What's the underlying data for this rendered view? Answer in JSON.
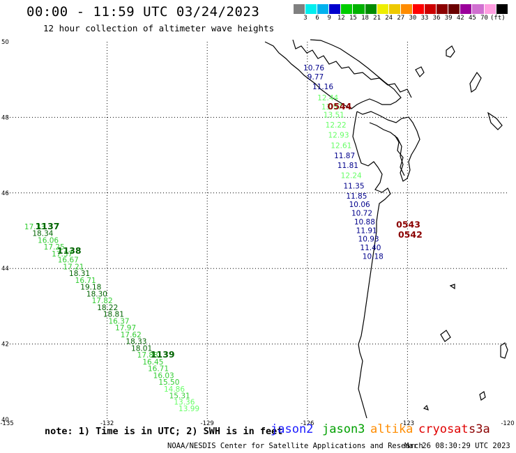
{
  "header": {
    "title": "00:00 - 11:59 UTC 03/24/2023",
    "subtitle": "12 hour collection of altimeter wave heights"
  },
  "colorbar": {
    "colors": [
      "#808080",
      "#00eeee",
      "#00b2ee",
      "#0000cd",
      "#00cd00",
      "#00b200",
      "#008b00",
      "#eeee00",
      "#eec900",
      "#ff8c00",
      "#ff0000",
      "#cd0000",
      "#8b0000",
      "#6b0000",
      "#9b009b",
      "#d070d0",
      "#ff9ee0",
      "#000000"
    ],
    "labels": [
      "3",
      "6",
      "9",
      "12",
      "15",
      "18",
      "21",
      "24",
      "27",
      "30",
      "33",
      "36",
      "39",
      "42",
      "45",
      "70"
    ],
    "unit": "(ft)"
  },
  "axes": {
    "lat_labels": [
      "50",
      "48",
      "46",
      "44",
      "42",
      "40"
    ],
    "lon_labels": [
      "-135",
      "-132",
      "-129",
      "-126",
      "-123",
      "-120"
    ]
  },
  "tracks": [
    {
      "times": [
        {
          "text": "1137",
          "lon": -134.15,
          "lat": 45.04,
          "color": "#006400"
        },
        {
          "text": "1138",
          "lon": -133.5,
          "lat": 44.39,
          "color": "#006400"
        },
        {
          "text": "1139",
          "lon": -130.7,
          "lat": 41.64,
          "color": "#006400"
        }
      ],
      "points": [
        {
          "text": "17.33",
          "lon": -134.48,
          "lat": 45.04,
          "color": "#32cd32"
        },
        {
          "text": "18.34",
          "lon": -134.24,
          "lat": 44.86,
          "color": "#006400"
        },
        {
          "text": "16.06",
          "lon": -134.08,
          "lat": 44.68,
          "color": "#32cd32"
        },
        {
          "text": "17.25",
          "lon": -133.9,
          "lat": 44.5,
          "color": "#32cd32"
        },
        {
          "text": "17.37",
          "lon": -133.66,
          "lat": 44.32,
          "color": "#32cd32"
        },
        {
          "text": "16.67",
          "lon": -133.48,
          "lat": 44.16,
          "color": "#32cd32"
        },
        {
          "text": "17.21",
          "lon": -133.32,
          "lat": 43.98,
          "color": "#32cd32"
        },
        {
          "text": "18.31",
          "lon": -133.14,
          "lat": 43.8,
          "color": "#006400"
        },
        {
          "text": "16.71",
          "lon": -132.96,
          "lat": 43.62,
          "color": "#32cd32"
        },
        {
          "text": "19.18",
          "lon": -132.8,
          "lat": 43.44,
          "color": "#006400"
        },
        {
          "text": "18.30",
          "lon": -132.62,
          "lat": 43.26,
          "color": "#006400"
        },
        {
          "text": "17.82",
          "lon": -132.46,
          "lat": 43.08,
          "color": "#32cd32"
        },
        {
          "text": "18.22",
          "lon": -132.3,
          "lat": 42.9,
          "color": "#006400"
        },
        {
          "text": "18.81",
          "lon": -132.12,
          "lat": 42.72,
          "color": "#006400"
        },
        {
          "text": "16.37",
          "lon": -131.96,
          "lat": 42.54,
          "color": "#32cd32"
        },
        {
          "text": "17.97",
          "lon": -131.76,
          "lat": 42.36,
          "color": "#32cd32"
        },
        {
          "text": "17.62",
          "lon": -131.6,
          "lat": 42.18,
          "color": "#32cd32"
        },
        {
          "text": "18.33",
          "lon": -131.44,
          "lat": 42.0,
          "color": "#006400"
        },
        {
          "text": "18.01",
          "lon": -131.28,
          "lat": 41.82,
          "color": "#006400"
        },
        {
          "text": "17.88",
          "lon": -131.1,
          "lat": 41.64,
          "color": "#32cd32"
        },
        {
          "text": "16.45",
          "lon": -130.94,
          "lat": 41.46,
          "color": "#32cd32"
        },
        {
          "text": "16.71",
          "lon": -130.78,
          "lat": 41.28,
          "color": "#32cd32"
        },
        {
          "text": "16.03",
          "lon": -130.62,
          "lat": 41.1,
          "color": "#32cd32"
        },
        {
          "text": "15.50",
          "lon": -130.46,
          "lat": 40.92,
          "color": "#32cd32"
        },
        {
          "text": "14.86",
          "lon": -130.3,
          "lat": 40.74,
          "color": "#66ff66"
        },
        {
          "text": "15.31",
          "lon": -130.14,
          "lat": 40.56,
          "color": "#32cd32"
        },
        {
          "text": "13.36",
          "lon": -130.0,
          "lat": 40.4,
          "color": "#66ff66"
        },
        {
          "text": "13.99",
          "lon": -129.86,
          "lat": 40.22,
          "color": "#66ff66"
        }
      ]
    },
    {
      "times": [
        {
          "text": "0544",
          "lon": -125.4,
          "lat": 48.21,
          "color": "#8b0000"
        },
        {
          "text": "0543",
          "lon": -123.34,
          "lat": 45.08,
          "color": "#8b0000"
        },
        {
          "text": "0542",
          "lon": -123.28,
          "lat": 44.82,
          "color": "#8b0000"
        }
      ],
      "points": [
        {
          "text": "10.76",
          "lon": -126.12,
          "lat": 49.24,
          "color": "#00008b"
        },
        {
          "text": "9.77",
          "lon": -126.0,
          "lat": 49.0,
          "color": "#00008b"
        },
        {
          "text": "11.16",
          "lon": -125.85,
          "lat": 48.75,
          "color": "#00008b"
        },
        {
          "text": "12.44",
          "lon": -125.7,
          "lat": 48.45,
          "color": "#66ff66"
        },
        {
          "text": "13.57",
          "lon": -125.58,
          "lat": 48.21,
          "color": "#66ff66"
        },
        {
          "text": "13.51",
          "lon": -125.52,
          "lat": 48.0,
          "color": "#66ff66"
        },
        {
          "text": "12.22",
          "lon": -125.46,
          "lat": 47.73,
          "color": "#66ff66"
        },
        {
          "text": "12.93",
          "lon": -125.38,
          "lat": 47.46,
          "color": "#66ff66"
        },
        {
          "text": "12.61",
          "lon": -125.3,
          "lat": 47.19,
          "color": "#66ff66"
        },
        {
          "text": "11.87",
          "lon": -125.2,
          "lat": 46.92,
          "color": "#00008b"
        },
        {
          "text": "11.81",
          "lon": -125.1,
          "lat": 46.66,
          "color": "#00008b"
        },
        {
          "text": "12.24",
          "lon": -125.0,
          "lat": 46.39,
          "color": "#66ff66"
        },
        {
          "text": "11.35",
          "lon": -124.92,
          "lat": 46.12,
          "color": "#00008b"
        },
        {
          "text": "11.85",
          "lon": -124.84,
          "lat": 45.85,
          "color": "#00008b"
        },
        {
          "text": "10.06",
          "lon": -124.75,
          "lat": 45.63,
          "color": "#00008b"
        },
        {
          "text": "10.72",
          "lon": -124.68,
          "lat": 45.4,
          "color": "#00008b"
        },
        {
          "text": "10.88",
          "lon": -124.6,
          "lat": 45.17,
          "color": "#00008b"
        },
        {
          "text": "11.91",
          "lon": -124.54,
          "lat": 44.94,
          "color": "#00008b"
        },
        {
          "text": "10.93",
          "lon": -124.48,
          "lat": 44.71,
          "color": "#00008b"
        },
        {
          "text": "11.40",
          "lon": -124.42,
          "lat": 44.48,
          "color": "#00008b"
        },
        {
          "text": "10.18",
          "lon": -124.35,
          "lat": 44.25,
          "color": "#00008b"
        }
      ]
    }
  ],
  "footer": {
    "note": "note: 1) Time is in UTC; 2) SWH is in feet",
    "satellites": [
      {
        "name": "jason2",
        "color": "#1a1aff"
      },
      {
        "name": "jason3",
        "color": "#00a000"
      },
      {
        "name": "altika",
        "color": "#ff8c00"
      },
      {
        "name": "cryosat",
        "color": "#e00000"
      },
      {
        "name": "s3a",
        "color": "#8b0000"
      }
    ],
    "credit": "NOAA/NESDIS Center for Satellite Applications and Research",
    "timestamp": "Mar 26 08:30:29 UTC 2023"
  }
}
